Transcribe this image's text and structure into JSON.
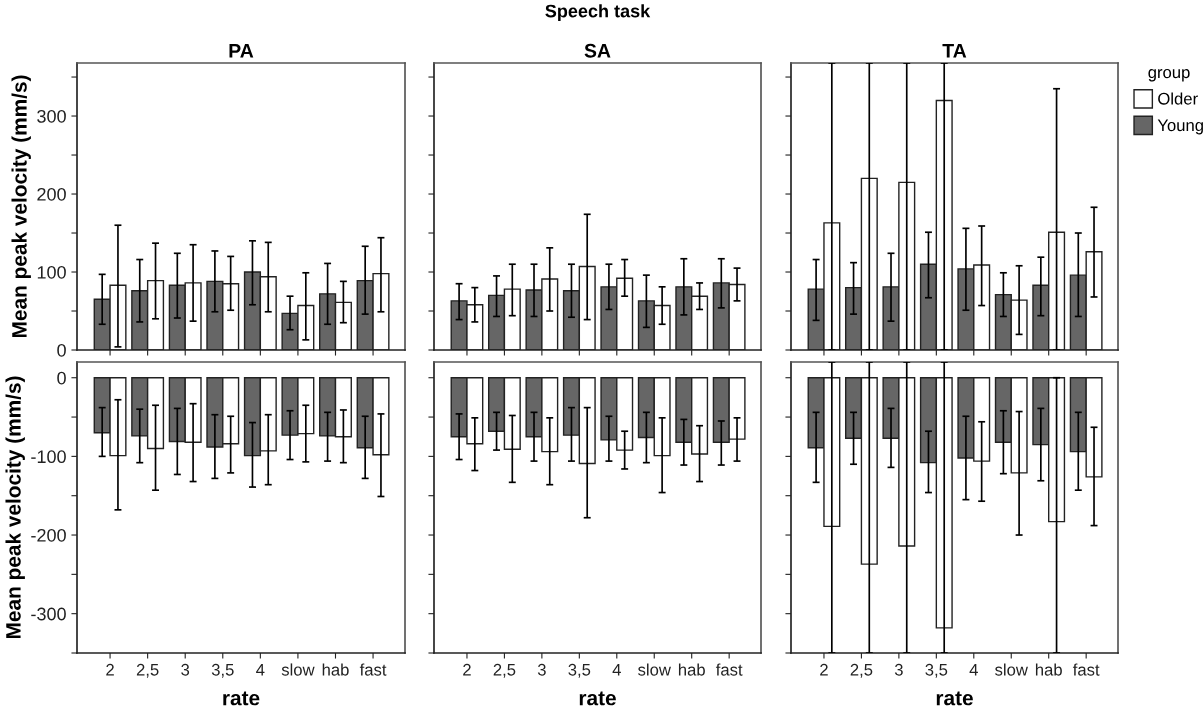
{
  "chart_data": [
    {
      "type": "bar",
      "title": "PA",
      "ylabel": "Mean peak velocity (mm/s)",
      "legend": "right",
      "legend_title": "group",
      "categories": [
        "2",
        "2,5",
        "3",
        "3,5",
        "4",
        "slow",
        "hab",
        "fast"
      ],
      "tick_labels": "y",
      "ylim": [
        0,
        368
      ],
      "yticks": [
        0,
        {
          "value": 50,
          "label": null
        },
        100,
        {
          "value": 150,
          "label": null
        },
        200,
        {
          "value": 250,
          "label": null
        },
        300,
        {
          "value": 350,
          "label": null
        }
      ],
      "series": [
        {
          "name": "Young",
          "color": "#666666",
          "values": [
            65,
            76,
            83,
            88,
            100,
            47,
            72,
            89
          ],
          "errors": [
            [
              33,
              97
            ],
            [
              36,
              116
            ],
            [
              41,
              124
            ],
            [
              49,
              127
            ],
            [
              58,
              140
            ],
            [
              26,
              69
            ],
            [
              33,
              111
            ],
            [
              46,
              133
            ]
          ]
        },
        {
          "name": "Older",
          "color": "#ffffff",
          "values": [
            83,
            89,
            86,
            85,
            94,
            57,
            61,
            98
          ],
          "errors": [
            [
              4,
              160
            ],
            [
              40,
              137
            ],
            [
              37,
              135
            ],
            [
              51,
              120
            ],
            [
              49,
              138
            ],
            [
              13,
              99
            ],
            [
              35,
              88
            ],
            [
              49,
              144
            ]
          ]
        }
      ]
    },
    {
      "type": "bar",
      "title": "SA",
      "annotations": [
        "Speech task"
      ],
      "categories": [
        "2",
        "2,5",
        "3",
        "3,5",
        "4",
        "slow",
        "hab",
        "fast"
      ],
      "tick_labels": false,
      "ylim": [
        0,
        368
      ],
      "yticks": [
        0,
        {
          "value": 50,
          "label": null
        },
        100,
        {
          "value": 150,
          "label": null
        },
        200,
        {
          "value": 250,
          "label": null
        },
        300,
        {
          "value": 350,
          "label": null
        }
      ],
      "series": [
        {
          "name": "Young",
          "color": "#666666",
          "values": [
            63,
            70,
            77,
            76,
            81,
            63,
            81,
            86
          ],
          "errors": [
            [
              39,
              85
            ],
            [
              43,
              95
            ],
            [
              43,
              110
            ],
            [
              42,
              110
            ],
            [
              52,
              110
            ],
            [
              29,
              96
            ],
            [
              45,
              117
            ],
            [
              54,
              117
            ]
          ]
        },
        {
          "name": "Older",
          "color": "#ffffff",
          "values": [
            58,
            78,
            91,
            107,
            92,
            57,
            69,
            84
          ],
          "errors": [
            [
              36,
              80
            ],
            [
              44,
              110
            ],
            [
              50,
              131
            ],
            [
              39,
              174
            ],
            [
              69,
              116
            ],
            [
              33,
              81
            ],
            [
              52,
              86
            ],
            [
              63,
              105
            ]
          ]
        }
      ]
    },
    {
      "type": "bar",
      "title": "TA",
      "categories": [
        "2",
        "2,5",
        "3",
        "3,5",
        "4",
        "slow",
        "hab",
        "fast"
      ],
      "tick_labels": false,
      "ylim": [
        0,
        368
      ],
      "yticks": [
        0,
        {
          "value": 50,
          "label": null
        },
        100,
        {
          "value": 150,
          "label": null
        },
        200,
        {
          "value": 250,
          "label": null
        },
        300,
        {
          "value": 350,
          "label": null
        }
      ],
      "series": [
        {
          "name": "Young",
          "color": "#666666",
          "values": [
            78,
            80,
            81,
            110,
            104,
            71,
            83,
            96
          ],
          "errors": [
            [
              38,
              116
            ],
            [
              46,
              112
            ],
            [
              37,
              124
            ],
            [
              67,
              151
            ],
            [
              51,
              156
            ],
            [
              43,
              99
            ],
            [
              44,
              119
            ],
            [
              43,
              150
            ]
          ]
        },
        {
          "name": "Older",
          "color": "#ffffff",
          "values": [
            163,
            220,
            215,
            320,
            109,
            64,
            151,
            126
          ],
          "errors": [
            [
              0,
              368
            ],
            [
              0,
              368
            ],
            [
              0,
              368
            ],
            [
              0,
              368
            ],
            [
              57,
              159
            ],
            [
              20,
              108
            ],
            [
              0,
              335
            ],
            [
              68,
              183
            ]
          ]
        }
      ]
    },
    {
      "type": "bar",
      "xlabel": "rate",
      "ylabel": "Mean peak velocity (mm/s)",
      "categories": [
        "2",
        "2,5",
        "3",
        "3,5",
        "4",
        "slow",
        "hab",
        "fast"
      ],
      "ylim": [
        -350,
        20
      ],
      "yticks": [
        {
          "value": -350,
          "label": null
        },
        -300,
        {
          "value": -250,
          "label": null
        },
        -200,
        {
          "value": -150,
          "label": null
        },
        -100,
        {
          "value": -50,
          "label": null
        },
        0
      ],
      "series": [
        {
          "name": "Young",
          "color": "#666666",
          "values": [
            -70,
            -74,
            -81,
            -88,
            -99,
            -73,
            -74,
            -89
          ],
          "errors": [
            [
              -100,
              -38
            ],
            [
              -108,
              -40
            ],
            [
              -123,
              -39
            ],
            [
              -128,
              -47
            ],
            [
              -139,
              -57
            ],
            [
              -104,
              -42
            ],
            [
              -106,
              -44
            ],
            [
              -128,
              -49
            ]
          ]
        },
        {
          "name": "Older",
          "color": "#ffffff",
          "values": [
            -99,
            -90,
            -82,
            -84,
            -93,
            -71,
            -75,
            -98
          ],
          "errors": [
            [
              -168,
              -28
            ],
            [
              -143,
              -35
            ],
            [
              -132,
              -33
            ],
            [
              -121,
              -49
            ],
            [
              -136,
              -47
            ],
            [
              -107,
              -35
            ],
            [
              -108,
              -41
            ],
            [
              -151,
              -46
            ]
          ]
        }
      ]
    },
    {
      "type": "bar",
      "xlabel": "rate",
      "categories": [
        "2",
        "2,5",
        "3",
        "3,5",
        "4",
        "slow",
        "hab",
        "fast"
      ],
      "tick_labels": "x",
      "ylim": [
        -350,
        20
      ],
      "yticks": [
        {
          "value": -350,
          "label": null
        },
        {
          "value": -300,
          "label": null
        },
        {
          "value": -250,
          "label": null
        },
        {
          "value": -200,
          "label": null
        },
        {
          "value": -150,
          "label": null
        },
        {
          "value": -100,
          "label": null
        },
        {
          "value": -50,
          "label": null
        },
        {
          "value": 0,
          "label": null
        }
      ],
      "series": [
        {
          "name": "Young",
          "color": "#666666",
          "values": [
            -75,
            -68,
            -75,
            -73,
            -79,
            -76,
            -82,
            -82
          ],
          "errors": [
            [
              -104,
              -46
            ],
            [
              -92,
              -44
            ],
            [
              -106,
              -44
            ],
            [
              -106,
              -38
            ],
            [
              -106,
              -49
            ],
            [
              -108,
              -44
            ],
            [
              -111,
              -53
            ],
            [
              -111,
              -55
            ]
          ]
        },
        {
          "name": "Older",
          "color": "#ffffff",
          "values": [
            -84,
            -91,
            -94,
            -109,
            -92,
            -99,
            -97,
            -78
          ],
          "errors": [
            [
              -118,
              -51
            ],
            [
              -133,
              -48
            ],
            [
              -136,
              -51
            ],
            [
              -178,
              -38
            ],
            [
              -116,
              -68
            ],
            [
              -146,
              -51
            ],
            [
              -132,
              -61
            ],
            [
              -106,
              -51
            ]
          ]
        }
      ]
    },
    {
      "type": "bar",
      "xlabel": "rate",
      "categories": [
        "2",
        "2,5",
        "3",
        "3,5",
        "4",
        "slow",
        "hab",
        "fast"
      ],
      "tick_labels": "x",
      "ylim": [
        -350,
        20
      ],
      "yticks": [
        {
          "value": -350,
          "label": null
        },
        {
          "value": -300,
          "label": null
        },
        {
          "value": -250,
          "label": null
        },
        {
          "value": -200,
          "label": null
        },
        {
          "value": -150,
          "label": null
        },
        {
          "value": -100,
          "label": null
        },
        {
          "value": -50,
          "label": null
        },
        {
          "value": 0,
          "label": null
        }
      ],
      "series": [
        {
          "name": "Young",
          "color": "#666666",
          "values": [
            -89,
            -77,
            -77,
            -108,
            -102,
            -82,
            -85,
            -94
          ],
          "errors": [
            [
              -133,
              -44
            ],
            [
              -110,
              -44
            ],
            [
              -114,
              -39
            ],
            [
              -146,
              -68
            ],
            [
              -155,
              -49
            ],
            [
              -122,
              -42
            ],
            [
              -131,
              -39
            ],
            [
              -143,
              -44
            ]
          ]
        },
        {
          "name": "Older",
          "color": "#ffffff",
          "values": [
            -189,
            -237,
            -214,
            -318,
            -106,
            -121,
            -183,
            -126
          ],
          "errors": [
            [
              -350,
              20
            ],
            [
              -350,
              20
            ],
            [
              -350,
              20
            ],
            [
              -350,
              20
            ],
            [
              -157,
              -56
            ],
            [
              -200,
              -43
            ],
            [
              -350,
              0
            ],
            [
              -188,
              -63
            ]
          ]
        }
      ]
    }
  ]
}
